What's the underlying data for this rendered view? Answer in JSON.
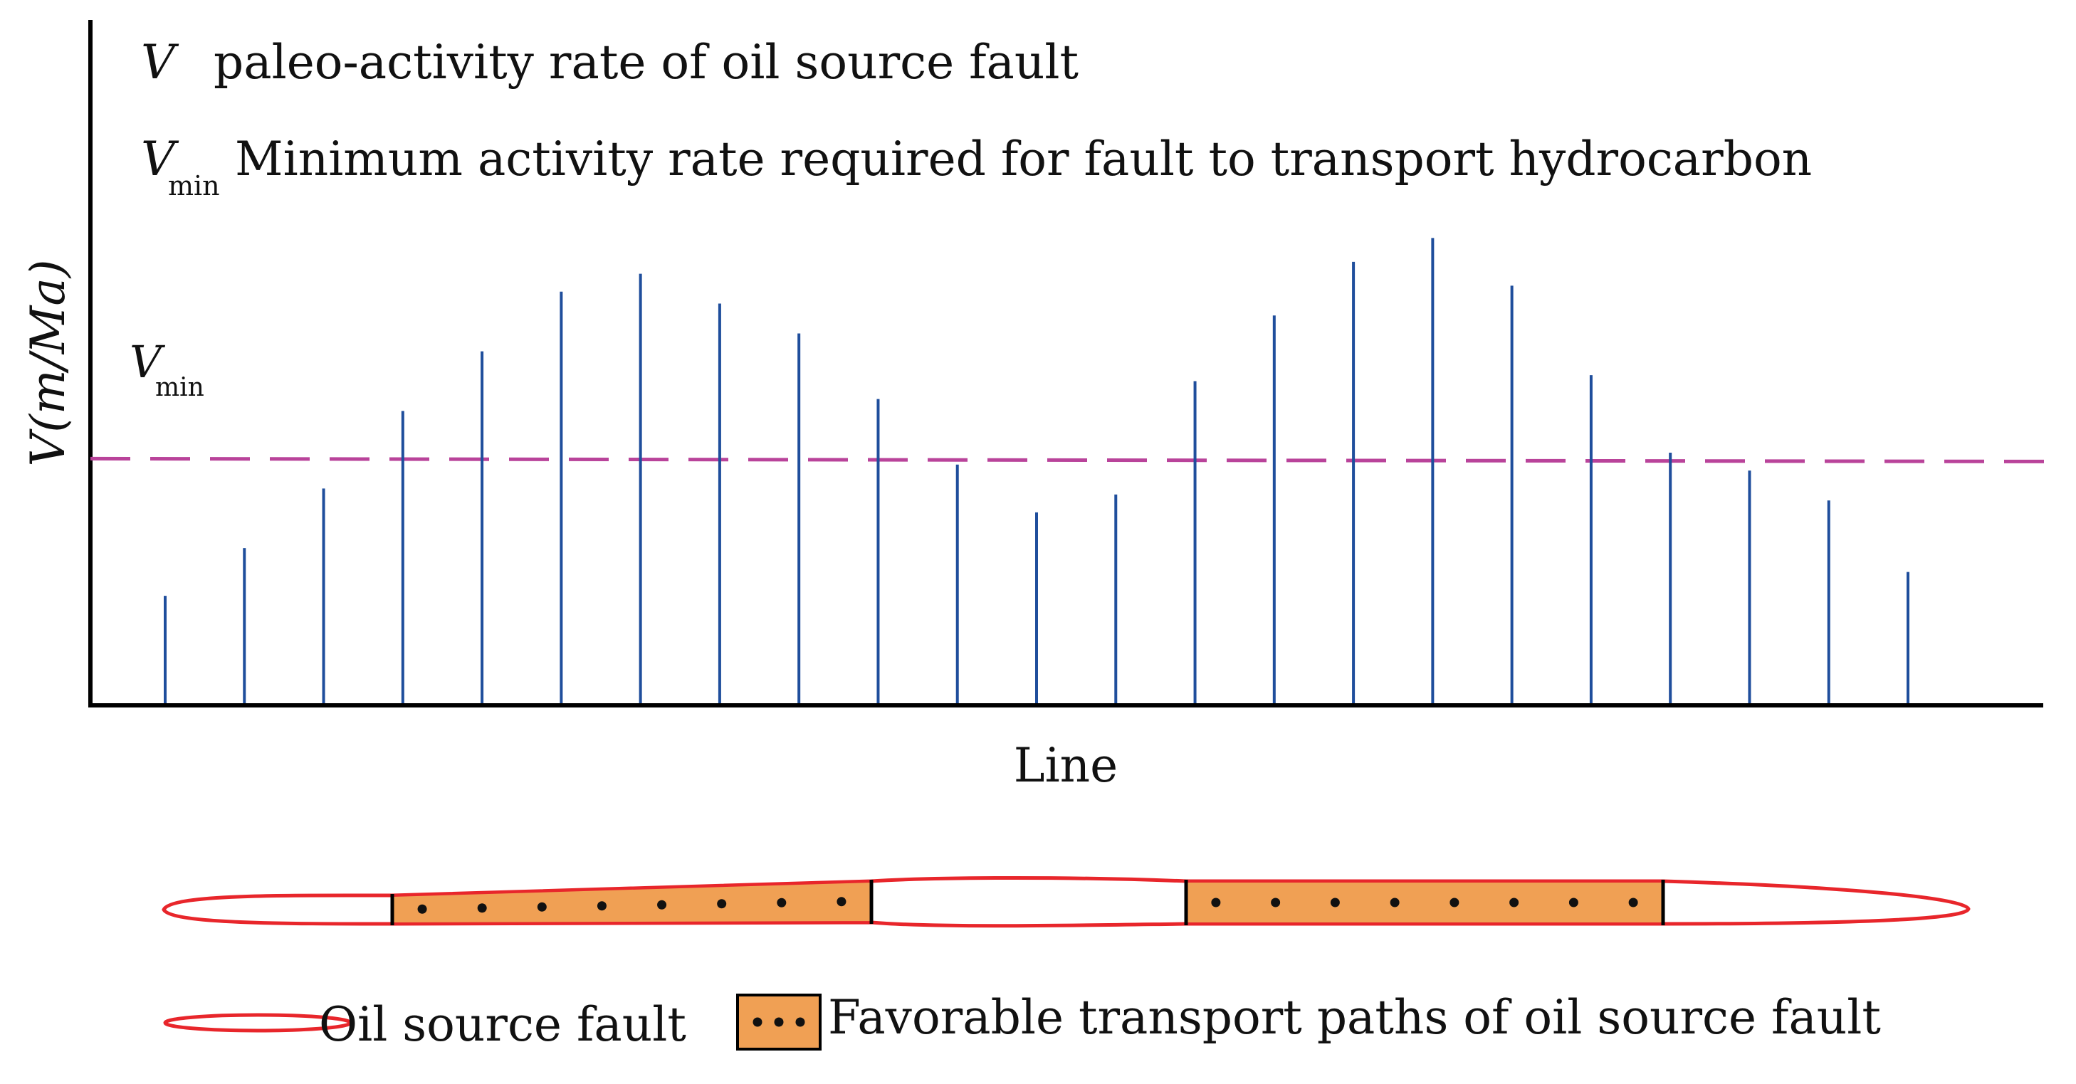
{
  "legend_top": {
    "v_symbol": "V",
    "v_text": "paleo-activity rate of oil source fault",
    "vmin_symbol": "V",
    "vmin_sub": "min",
    "vmin_text": "Minimum activity rate required for fault to transport hydrocarbon"
  },
  "chart_data": {
    "type": "bar",
    "y_axis_label": "V(m/Ma)",
    "x_axis_label": "Line",
    "threshold": {
      "symbol": "V",
      "sub": "min",
      "value": 0.41,
      "color": "#b9439a"
    },
    "bar_color": "#1f4e9c",
    "ylim": [
      0,
      1
    ],
    "values": [
      0.18,
      0.26,
      0.36,
      0.49,
      0.59,
      0.69,
      0.72,
      0.67,
      0.62,
      0.51,
      0.4,
      0.32,
      0.35,
      0.54,
      0.65,
      0.74,
      0.78,
      0.7,
      0.55,
      0.42,
      0.39,
      0.34,
      0.22
    ]
  },
  "fault_diagram": {
    "outline_color": "#e8262b",
    "path_fill": "#f0a054",
    "segments": [
      {
        "dots": 8
      },
      {
        "dots": 8
      }
    ]
  },
  "legend_bottom": {
    "fault_label": "Oil source fault",
    "path_label": "Favorable transport paths of oil source fault"
  }
}
